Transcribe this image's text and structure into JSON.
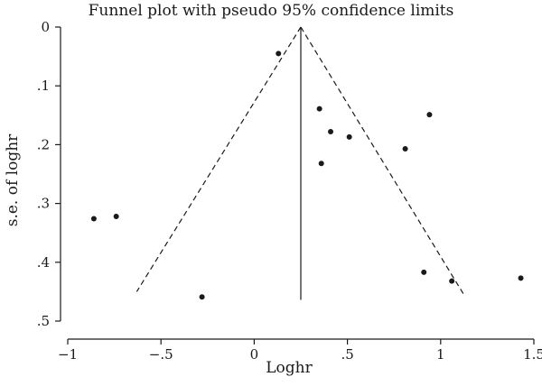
{
  "chart_data": {
    "type": "scatter",
    "title": "Funnel plot with pseudo 95% confidence limits",
    "xlabel": "Loghr",
    "ylabel": "s.e. of loghr",
    "xlim": [
      -1.05,
      1.55
    ],
    "ylim": [
      0,
      0.5
    ],
    "y_inverted": true,
    "x_ticks": [
      -1,
      -0.5,
      0,
      0.5,
      1,
      1.5
    ],
    "x_tick_labels": [
      "−1",
      "−.5",
      "0",
      ".5",
      "1",
      "1.5"
    ],
    "y_ticks": [
      0,
      0.1,
      0.2,
      0.3,
      0.4,
      0.5
    ],
    "y_tick_labels": [
      "0",
      ".1",
      ".2",
      ".3",
      ".4",
      ".5"
    ],
    "grid": false,
    "pooled_estimate": 0.25,
    "funnel_lines": {
      "left": [
        [
          0.25,
          0.0
        ],
        [
          -0.63,
          0.45
        ]
      ],
      "right": [
        [
          0.25,
          0.0
        ],
        [
          1.13,
          0.458
        ]
      ],
      "center": [
        [
          0.25,
          0.0
        ],
        [
          0.25,
          0.464
        ]
      ],
      "style": "dashed (limits), solid (center)"
    },
    "points": [
      {
        "x": 0.13,
        "y": 0.045
      },
      {
        "x": 0.35,
        "y": 0.139
      },
      {
        "x": 0.94,
        "y": 0.149
      },
      {
        "x": 0.41,
        "y": 0.178
      },
      {
        "x": 0.51,
        "y": 0.187
      },
      {
        "x": 0.81,
        "y": 0.207
      },
      {
        "x": 0.36,
        "y": 0.232
      },
      {
        "x": -0.74,
        "y": 0.322
      },
      {
        "x": -0.86,
        "y": 0.326
      },
      {
        "x": 0.91,
        "y": 0.417
      },
      {
        "x": 1.43,
        "y": 0.427
      },
      {
        "x": 1.06,
        "y": 0.432
      },
      {
        "x": -0.28,
        "y": 0.459
      }
    ]
  }
}
